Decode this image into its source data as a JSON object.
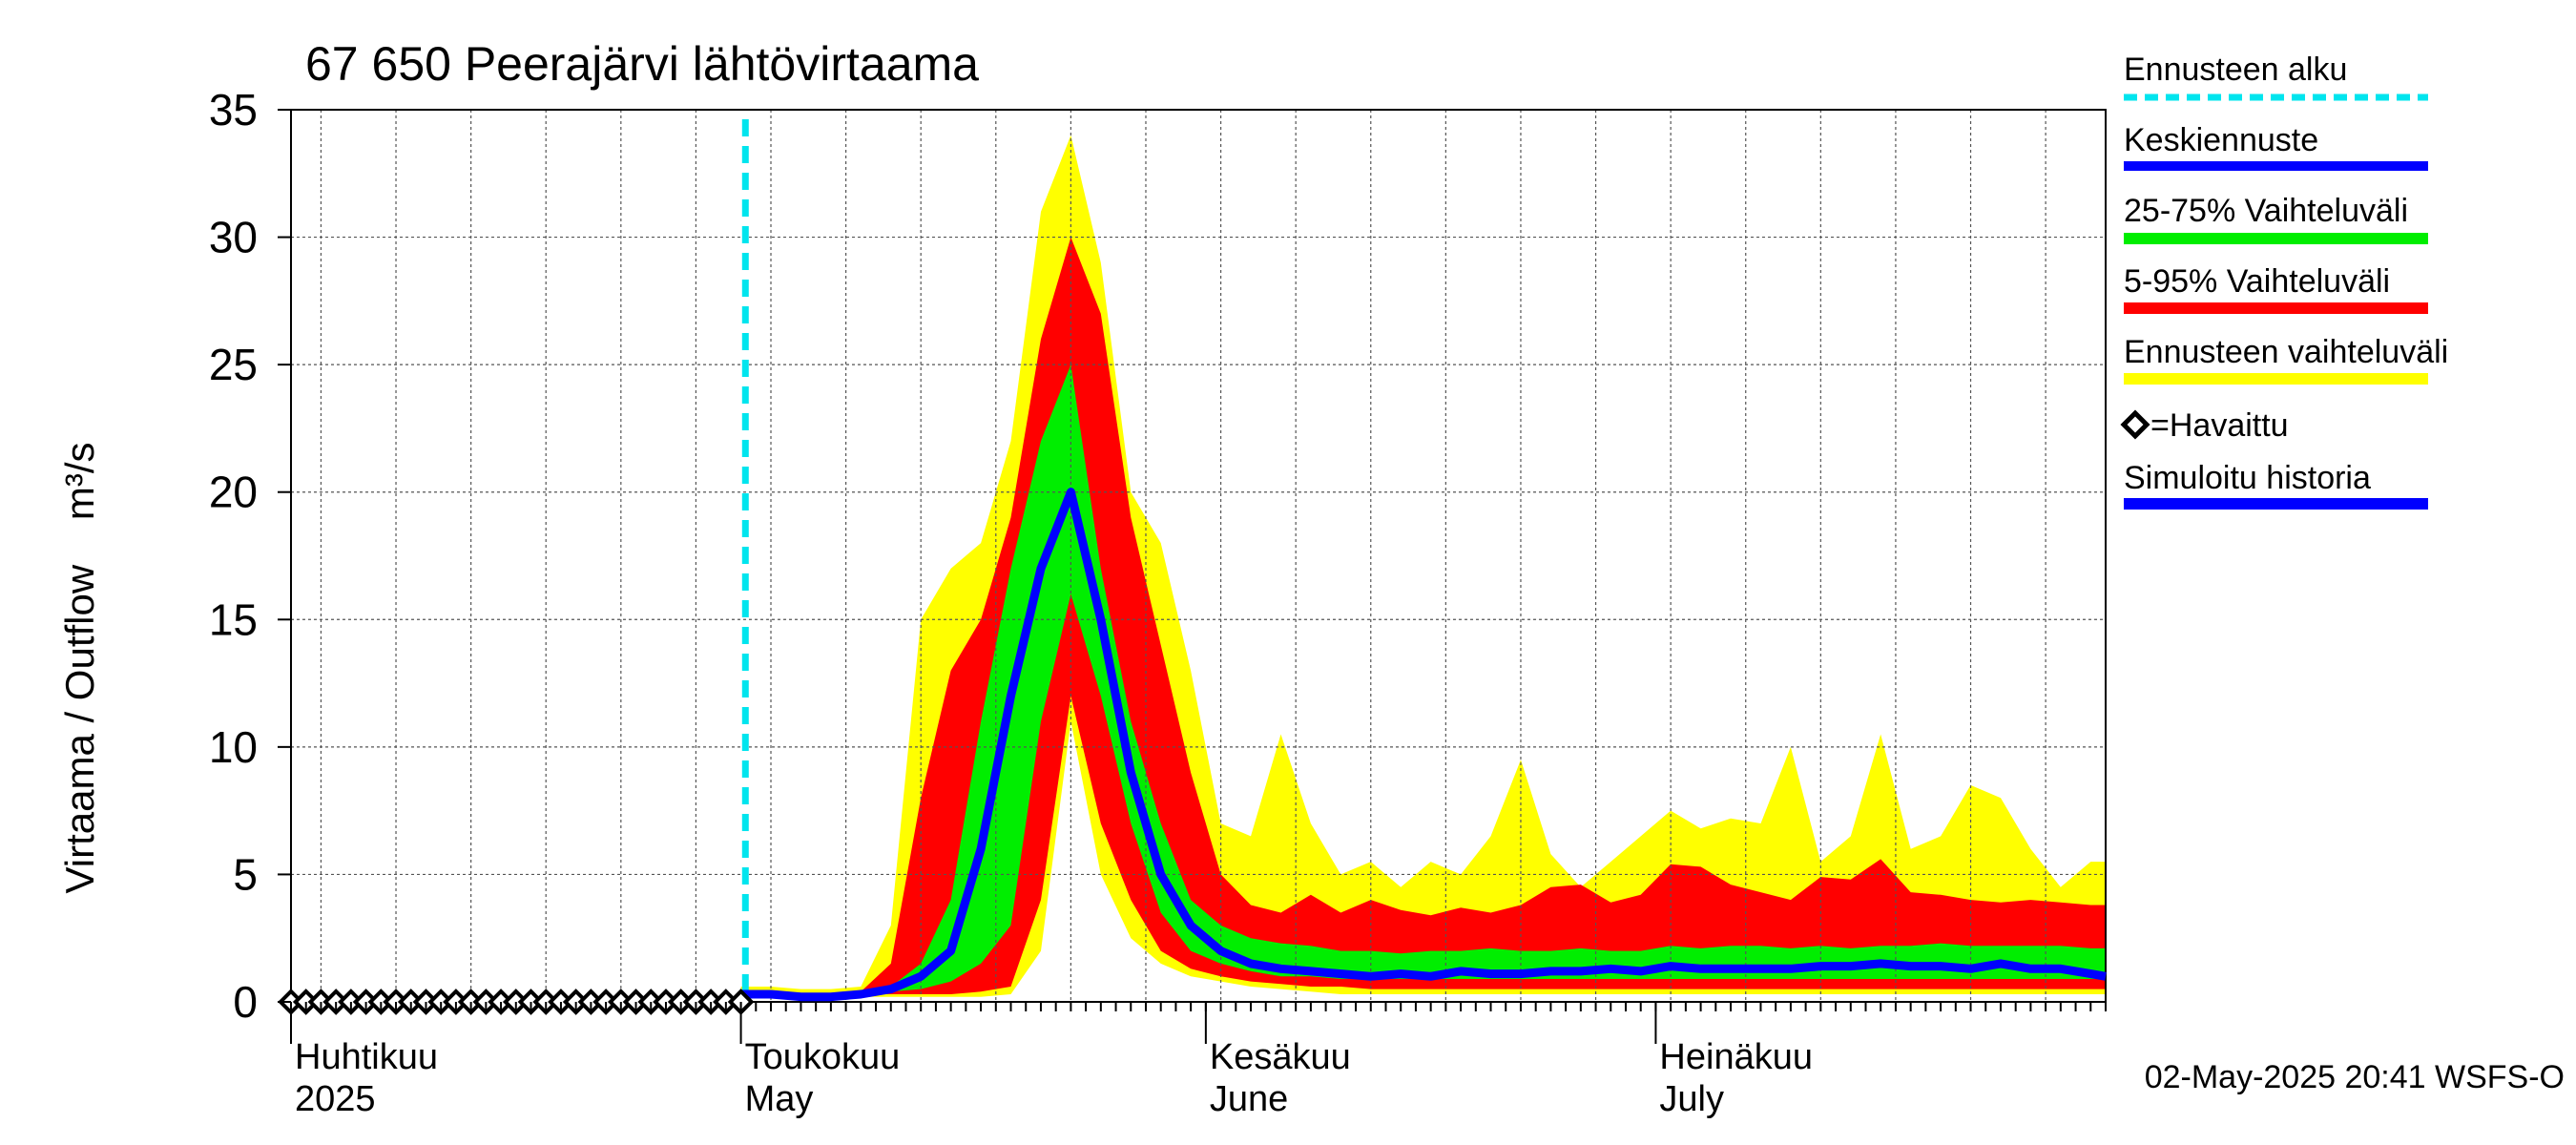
{
  "chart_data": {
    "type": "area",
    "title": "67 650 Peerajärvi lähtövirtaama",
    "ylabel": "Virtaama / Outflow    m³/s",
    "ylim": [
      0,
      35
    ],
    "y_ticks": [
      0,
      5,
      10,
      15,
      20,
      25,
      30,
      35
    ],
    "x_range_days": [
      0,
      121
    ],
    "x_start_date": "2025-04-01",
    "month_labels": [
      {
        "day": 0,
        "line1": "Huhtikuu",
        "line2": "2025"
      },
      {
        "day": 30,
        "line1": "Toukokuu",
        "line2": "May"
      },
      {
        "day": 61,
        "line1": "Kesäkuu",
        "line2": "June"
      },
      {
        "day": 91,
        "line1": "Heinäkuu",
        "line2": "July"
      }
    ],
    "forecast_start_day": 30.3,
    "legend": {
      "forecast_start": "Ennusteen alku",
      "median": "Keskiennuste",
      "band_25_75": "25-75% Vaihteluväli",
      "band_5_95": "5-95% Vaihteluväli",
      "band_full": "Ennusteen vaihteluväli",
      "observed": "=Havaittu",
      "simulated": "Simuloitu historia"
    },
    "colors": {
      "forecast_start": "#00e5ee",
      "median": "#0000ff",
      "band_25_75": "#00ee00",
      "band_5_95": "#ff0000",
      "band_full": "#ffff00",
      "observed": "#000000",
      "simulated": "#0000ff"
    },
    "footer": "02-May-2025 20:41 WSFS-O",
    "observed": {
      "days": [
        0,
        1,
        2,
        3,
        4,
        5,
        6,
        7,
        8,
        9,
        10,
        11,
        12,
        13,
        14,
        15,
        16,
        17,
        18,
        19,
        20,
        21,
        22,
        23,
        24,
        25,
        26,
        27,
        28,
        29,
        30
      ],
      "values": [
        0,
        0,
        0,
        0,
        0,
        0,
        0,
        0,
        0,
        0,
        0,
        0,
        0,
        0,
        0,
        0,
        0,
        0,
        0,
        0,
        0,
        0,
        0,
        0,
        0,
        0,
        0,
        0,
        0,
        0,
        0
      ]
    },
    "forecast": {
      "days": [
        30,
        32,
        34,
        36,
        38,
        40,
        42,
        44,
        46,
        48,
        50,
        52,
        54,
        56,
        58,
        60,
        62,
        64,
        66,
        68,
        70,
        72,
        74,
        76,
        78,
        80,
        82,
        84,
        86,
        88,
        90,
        92,
        94,
        96,
        98,
        100,
        102,
        104,
        106,
        108,
        110,
        112,
        114,
        116,
        118,
        120,
        121
      ],
      "full_low": [
        0.2,
        0.2,
        0.2,
        0.2,
        0.2,
        0.2,
        0.2,
        0.2,
        0.2,
        0.3,
        2,
        11,
        5,
        2.5,
        1.5,
        1,
        0.8,
        0.6,
        0.5,
        0.4,
        0.3,
        0.3,
        0.3,
        0.3,
        0.3,
        0.3,
        0.3,
        0.3,
        0.3,
        0.3,
        0.3,
        0.3,
        0.3,
        0.3,
        0.3,
        0.3,
        0.3,
        0.3,
        0.3,
        0.3,
        0.3,
        0.3,
        0.3,
        0.3,
        0.3,
        0.3,
        0.3
      ],
      "p5": [
        0.3,
        0.3,
        0.3,
        0.3,
        0.3,
        0.3,
        0.3,
        0.3,
        0.4,
        0.6,
        4,
        12,
        7,
        4,
        2,
        1.3,
        1,
        0.8,
        0.7,
        0.6,
        0.6,
        0.5,
        0.5,
        0.5,
        0.5,
        0.5,
        0.5,
        0.5,
        0.5,
        0.5,
        0.5,
        0.5,
        0.5,
        0.5,
        0.5,
        0.5,
        0.5,
        0.5,
        0.5,
        0.5,
        0.5,
        0.5,
        0.5,
        0.5,
        0.5,
        0.5,
        0.5
      ],
      "p25": [
        0.3,
        0.3,
        0.3,
        0.3,
        0.3,
        0.4,
        0.5,
        0.8,
        1.5,
        3,
        11,
        16,
        12,
        7,
        3.5,
        2,
        1.5,
        1.2,
        1,
        1,
        0.9,
        0.9,
        0.9,
        0.9,
        0.9,
        0.9,
        0.9,
        0.9,
        0.9,
        0.9,
        0.9,
        0.9,
        0.9,
        0.9,
        0.9,
        0.9,
        0.9,
        0.9,
        0.9,
        0.9,
        0.9,
        0.9,
        0.9,
        0.9,
        0.9,
        0.9,
        0.9
      ],
      "median": [
        0.3,
        0.3,
        0.2,
        0.2,
        0.3,
        0.5,
        1.0,
        2.0,
        6,
        12,
        17,
        20,
        15,
        9,
        5,
        3,
        2,
        1.5,
        1.3,
        1.2,
        1.1,
        1.0,
        1.1,
        1.0,
        1.2,
        1.1,
        1.1,
        1.2,
        1.2,
        1.3,
        1.2,
        1.4,
        1.3,
        1.3,
        1.3,
        1.3,
        1.4,
        1.4,
        1.5,
        1.4,
        1.4,
        1.3,
        1.5,
        1.3,
        1.3,
        1.1,
        1.0
      ],
      "p75": [
        0.3,
        0.3,
        0.3,
        0.3,
        0.3,
        0.6,
        1.5,
        4,
        11,
        17,
        22,
        25,
        17,
        11,
        7,
        4,
        3,
        2.5,
        2.3,
        2.2,
        2.0,
        2.0,
        1.9,
        2.0,
        2.0,
        2.1,
        2.0,
        2.0,
        2.1,
        2.0,
        2.0,
        2.2,
        2.1,
        2.2,
        2.2,
        2.1,
        2.2,
        2.1,
        2.2,
        2.2,
        2.3,
        2.2,
        2.2,
        2.2,
        2.2,
        2.1,
        2.1
      ],
      "p95": [
        0.4,
        0.4,
        0.3,
        0.3,
        0.4,
        1.5,
        8,
        13,
        15,
        19,
        26,
        30,
        27,
        19,
        14,
        9,
        5,
        3.8,
        3.5,
        4.2,
        3.5,
        4.0,
        3.6,
        3.4,
        3.7,
        3.5,
        3.8,
        4.5,
        4.6,
        3.9,
        4.2,
        5.4,
        5.3,
        4.6,
        4.3,
        4.0,
        4.9,
        4.8,
        5.6,
        4.3,
        4.2,
        4.0,
        3.9,
        4.0,
        3.9,
        3.8,
        3.8
      ],
      "full_high": [
        0.6,
        0.6,
        0.5,
        0.5,
        0.6,
        3,
        15,
        17,
        18,
        22,
        31,
        34,
        29,
        20,
        18,
        13,
        7,
        6.5,
        10.5,
        7,
        5,
        5.5,
        4.5,
        5.5,
        5,
        6.5,
        9.5,
        5.8,
        4.5,
        5.5,
        6.5,
        7.5,
        6.8,
        7.2,
        7.0,
        10,
        5.5,
        6.5,
        10.5,
        6,
        6.5,
        8.5,
        8,
        6,
        4.5,
        5.5,
        5.5
      ]
    }
  }
}
